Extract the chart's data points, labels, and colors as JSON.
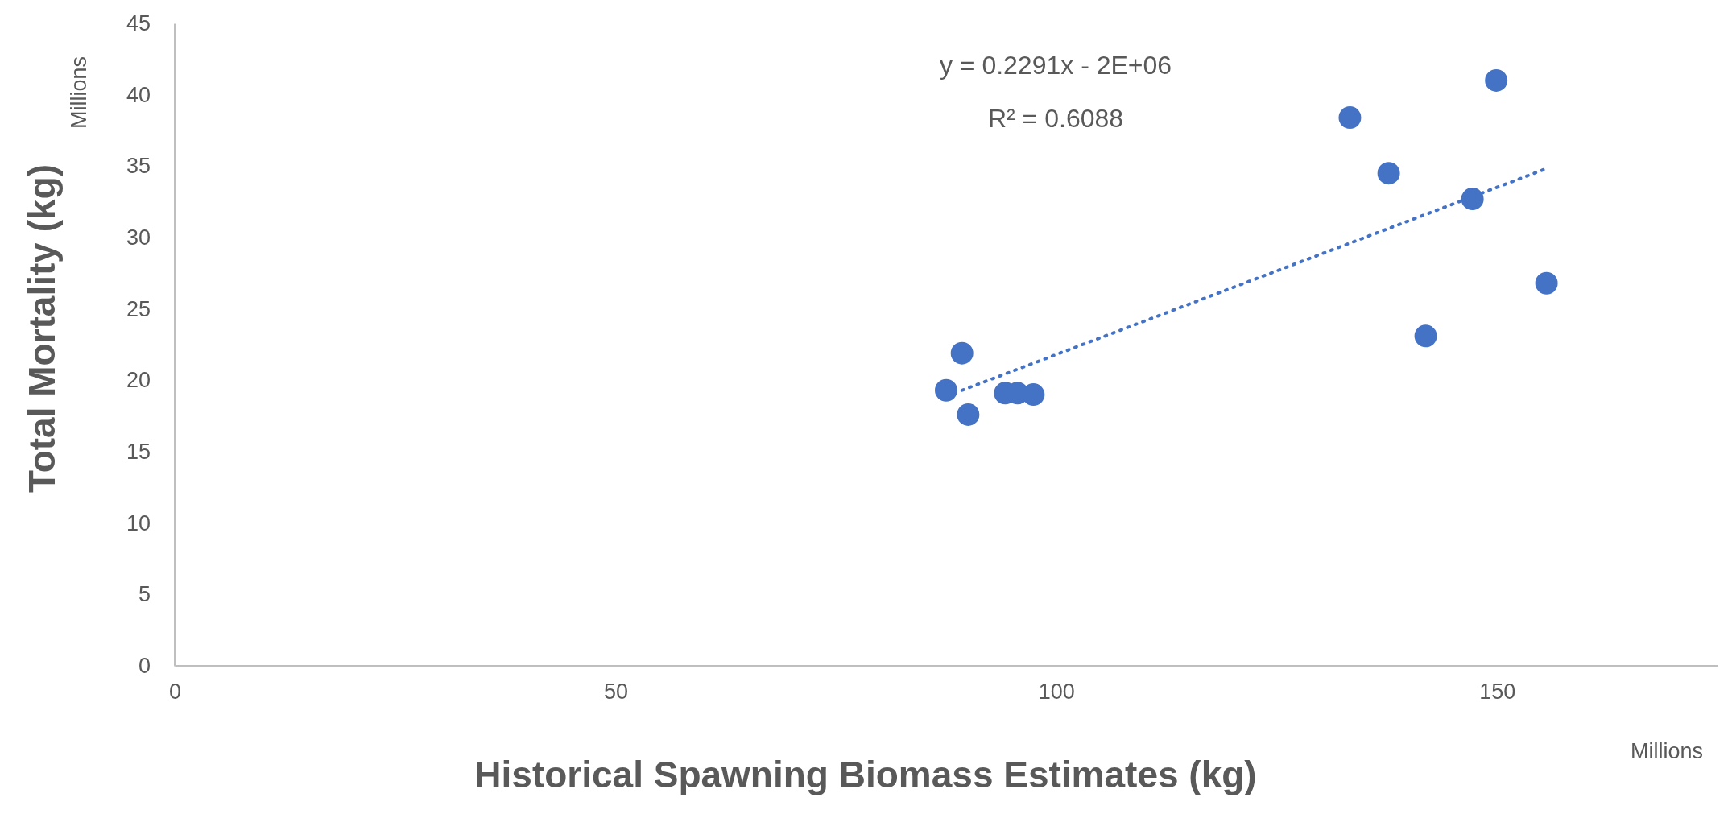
{
  "chart_data": {
    "type": "scatter",
    "xlabel": "Historical Spawning Biomass Estimates (kg)",
    "ylabel": "Total Mortality (kg)",
    "xlim": [
      0,
      175
    ],
    "xticks": [
      0,
      50,
      100,
      150
    ],
    "ylim": [
      0,
      45
    ],
    "yticks": [
      0,
      5,
      10,
      15,
      20,
      25,
      30,
      35,
      40,
      45
    ],
    "grid": false,
    "series": [
      {
        "color": "#4472c4",
        "marker": "circle",
        "x": [
          87.5,
          89.3,
          90.0,
          94.2,
          95.6,
          97.4,
          133.3,
          137.7,
          141.9,
          147.2,
          149.9,
          155.6
        ],
        "values": [
          19.3,
          21.9,
          17.6,
          19.1,
          19.1,
          19.0,
          38.4,
          34.5,
          23.1,
          32.7,
          41.0,
          26.8
        ]
      },
      {
        "type": "line",
        "color": "#4472c4",
        "line_style": "dotted",
        "x": [
          89.3,
          155.9
        ],
        "values": [
          19.3,
          34.9
        ]
      }
    ],
    "annotations": [
      "Millions",
      "Millions",
      "y = 0.2291x - 2E+06",
      "R² = 0.6088"
    ]
  }
}
